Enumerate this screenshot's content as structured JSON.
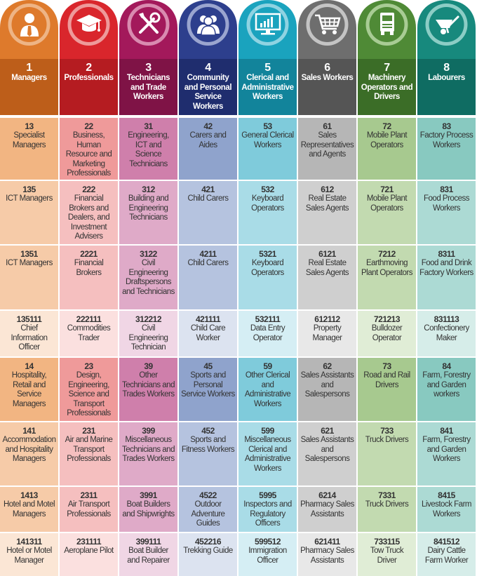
{
  "columns": [
    {
      "icon": "manager-icon",
      "number": "1",
      "title": "Managers",
      "colors": {
        "main": "#de7a2c",
        "dark": "#bd5e1a",
        "ring": "#eeb485",
        "tints": [
          "#f2b582",
          "#f6cba8",
          "#fbe6d5"
        ]
      },
      "rows": [
        {
          "code": "13",
          "name": "Specialist Managers"
        },
        {
          "code": "135",
          "name": "ICT Managers"
        },
        {
          "code": "1351",
          "name": "ICT Managers"
        },
        {
          "code": "135111",
          "name": "Chief Information Officer"
        },
        {
          "code": "14",
          "name": "Hospitality, Retail and Service Managers"
        },
        {
          "code": "141",
          "name": "Accommodation and Hospitality Managers"
        },
        {
          "code": "1413",
          "name": "Hotel and Motel Managers"
        },
        {
          "code": "141311",
          "name": "Hotel or Motel Manager"
        }
      ]
    },
    {
      "icon": "graduation-cap-icon",
      "number": "2",
      "title": "Professionals",
      "colors": {
        "main": "#d9262c",
        "dark": "#b51c21",
        "ring": "#ee9a9a",
        "tints": [
          "#ef9a9a",
          "#f5bfbf",
          "#fbe0df"
        ]
      },
      "rows": [
        {
          "code": "22",
          "name": "Business, Human Resource and Marketing Professionals"
        },
        {
          "code": "222",
          "name": "Financial Brokers and Dealers, and Investment Advisers"
        },
        {
          "code": "2221",
          "name": "Financial Brokers"
        },
        {
          "code": "222111",
          "name": "Commodities Trader"
        },
        {
          "code": "23",
          "name": "Design, Engineering, Science and Transport Professionals"
        },
        {
          "code": "231",
          "name": "Air and Marine Transport Professionals"
        },
        {
          "code": "2311",
          "name": "Air Transport Professionals"
        },
        {
          "code": "231111",
          "name": "Aeroplane Pilot"
        }
      ]
    },
    {
      "icon": "tools-icon",
      "number": "3",
      "title": "Technicians and Trade Workers",
      "colors": {
        "main": "#a3195b",
        "dark": "#7f1346",
        "ring": "#d98bb0",
        "tints": [
          "#cf7fab",
          "#dfaac8",
          "#f0d6e5"
        ]
      },
      "rows": [
        {
          "code": "31",
          "name": "Engineering, ICT and Science Technicians"
        },
        {
          "code": "312",
          "name": "Building and Engineering Technicians"
        },
        {
          "code": "3122",
          "name": "Civil Engineering Draftspersons and Technicians"
        },
        {
          "code": "312212",
          "name": "Civil Engineering Technician"
        },
        {
          "code": "39",
          "name": "Other Technicians and Trades Workers"
        },
        {
          "code": "399",
          "name": "Miscellaneous Technicians and Trades Workers"
        },
        {
          "code": "3991",
          "name": "Boat Builders and Shipwrights"
        },
        {
          "code": "399111",
          "name": "Boat Builder and Repairer"
        }
      ]
    },
    {
      "icon": "people-icon",
      "number": "4",
      "title": "Community and Personal Service Workers",
      "colors": {
        "main": "#2d3f8d",
        "dark": "#1f2d6e",
        "ring": "#9aa5cf",
        "tints": [
          "#8fa3cc",
          "#b5c3df",
          "#dce3f0"
        ]
      },
      "rows": [
        {
          "code": "42",
          "name": "Carers and Aides"
        },
        {
          "code": "421",
          "name": "Child Carers"
        },
        {
          "code": "4211",
          "name": "Child Carers"
        },
        {
          "code": "421111",
          "name": "Child Care Worker"
        },
        {
          "code": "45",
          "name": "Sports and Personal Service Workers"
        },
        {
          "code": "452",
          "name": "Sports and Fitness Workers"
        },
        {
          "code": "4522",
          "name": "Outdoor Adventure Guides"
        },
        {
          "code": "452216",
          "name": "Trekking Guide"
        }
      ]
    },
    {
      "icon": "chart-monitor-icon",
      "number": "5",
      "title": "Clerical and Administrative Workers",
      "colors": {
        "main": "#1aa3be",
        "dark": "#12849b",
        "ring": "#8fd3e2",
        "tints": [
          "#7fcbdb",
          "#a9dce7",
          "#d5eef4"
        ]
      },
      "rows": [
        {
          "code": "53",
          "name": "General Clerical Workers"
        },
        {
          "code": "532",
          "name": "Keyboard Operators"
        },
        {
          "code": "5321",
          "name": "Keyboard Operators"
        },
        {
          "code": "532111",
          "name": "Data Entry Operator"
        },
        {
          "code": "59",
          "name": "Other Clerical and Administrative Workers"
        },
        {
          "code": "599",
          "name": "Miscellaneous Clerical and Administrative Workers"
        },
        {
          "code": "5995",
          "name": "Inspectors and Regulatory Officers"
        },
        {
          "code": "599512",
          "name": "Immigration Officer"
        }
      ]
    },
    {
      "icon": "shopping-cart-icon",
      "number": "6",
      "title": "Sales Workers",
      "colors": {
        "main": "#6e6e6e",
        "dark": "#555555",
        "ring": "#c4c4c4",
        "tints": [
          "#b6b6b6",
          "#cfcfcf",
          "#e8e8e8"
        ]
      },
      "rows": [
        {
          "code": "61",
          "name": "Sales Representatives and Agents"
        },
        {
          "code": "612",
          "name": "Real Estate Sales Agents"
        },
        {
          "code": "6121",
          "name": "Real Estate Sales Agents"
        },
        {
          "code": "612112",
          "name": "Property Manager"
        },
        {
          "code": "62",
          "name": "Sales Assistants and Salespersons"
        },
        {
          "code": "621",
          "name": "Sales Assistants and Salespersons"
        },
        {
          "code": "6214",
          "name": "Pharmacy Sales Assistants"
        },
        {
          "code": "621411",
          "name": "Pharmacy Sales Assistants"
        }
      ]
    },
    {
      "icon": "truck-icon",
      "number": "7",
      "title": "Machinery Operators and Drivers",
      "colors": {
        "main": "#4f8a36",
        "dark": "#3b6d27",
        "ring": "#a8cc94",
        "tints": [
          "#a7c98f",
          "#c2dab0",
          "#e0edd6"
        ]
      },
      "rows": [
        {
          "code": "72",
          "name": "Mobile Plant Operators"
        },
        {
          "code": "721",
          "name": "Mobile Plant Operators"
        },
        {
          "code": "7212",
          "name": "Earthmoving Plant Operators"
        },
        {
          "code": "721213",
          "name": "Bulldozer Operator"
        },
        {
          "code": "73",
          "name": "Road and Rail Drivers"
        },
        {
          "code": "733",
          "name": "Truck Drivers"
        },
        {
          "code": "7331",
          "name": "Truck Drivers"
        },
        {
          "code": "733115",
          "name": "Tow Truck Driver"
        }
      ]
    },
    {
      "icon": "wheelbarrow-icon",
      "number": "8",
      "title": "Labourers",
      "colors": {
        "main": "#17897d",
        "dark": "#0f6c62",
        "ring": "#8ccdc5",
        "tints": [
          "#88c9c0",
          "#acdad4",
          "#d6ede9"
        ]
      },
      "rows": [
        {
          "code": "83",
          "name": "Factory Process Workers"
        },
        {
          "code": "831",
          "name": "Food Process Workers"
        },
        {
          "code": "8311",
          "name": "Food and Drink Factory Workers"
        },
        {
          "code": "831113",
          "name": "Confectionery Maker"
        },
        {
          "code": "84",
          "name": "Farm, Forestry and Garden workers"
        },
        {
          "code": "841",
          "name": "Farm, Forestry and Garden Workers"
        },
        {
          "code": "8415",
          "name": "Livestock Farm Workers"
        },
        {
          "code": "841512",
          "name": "Dairy Cattle Farm Worker"
        }
      ]
    }
  ]
}
